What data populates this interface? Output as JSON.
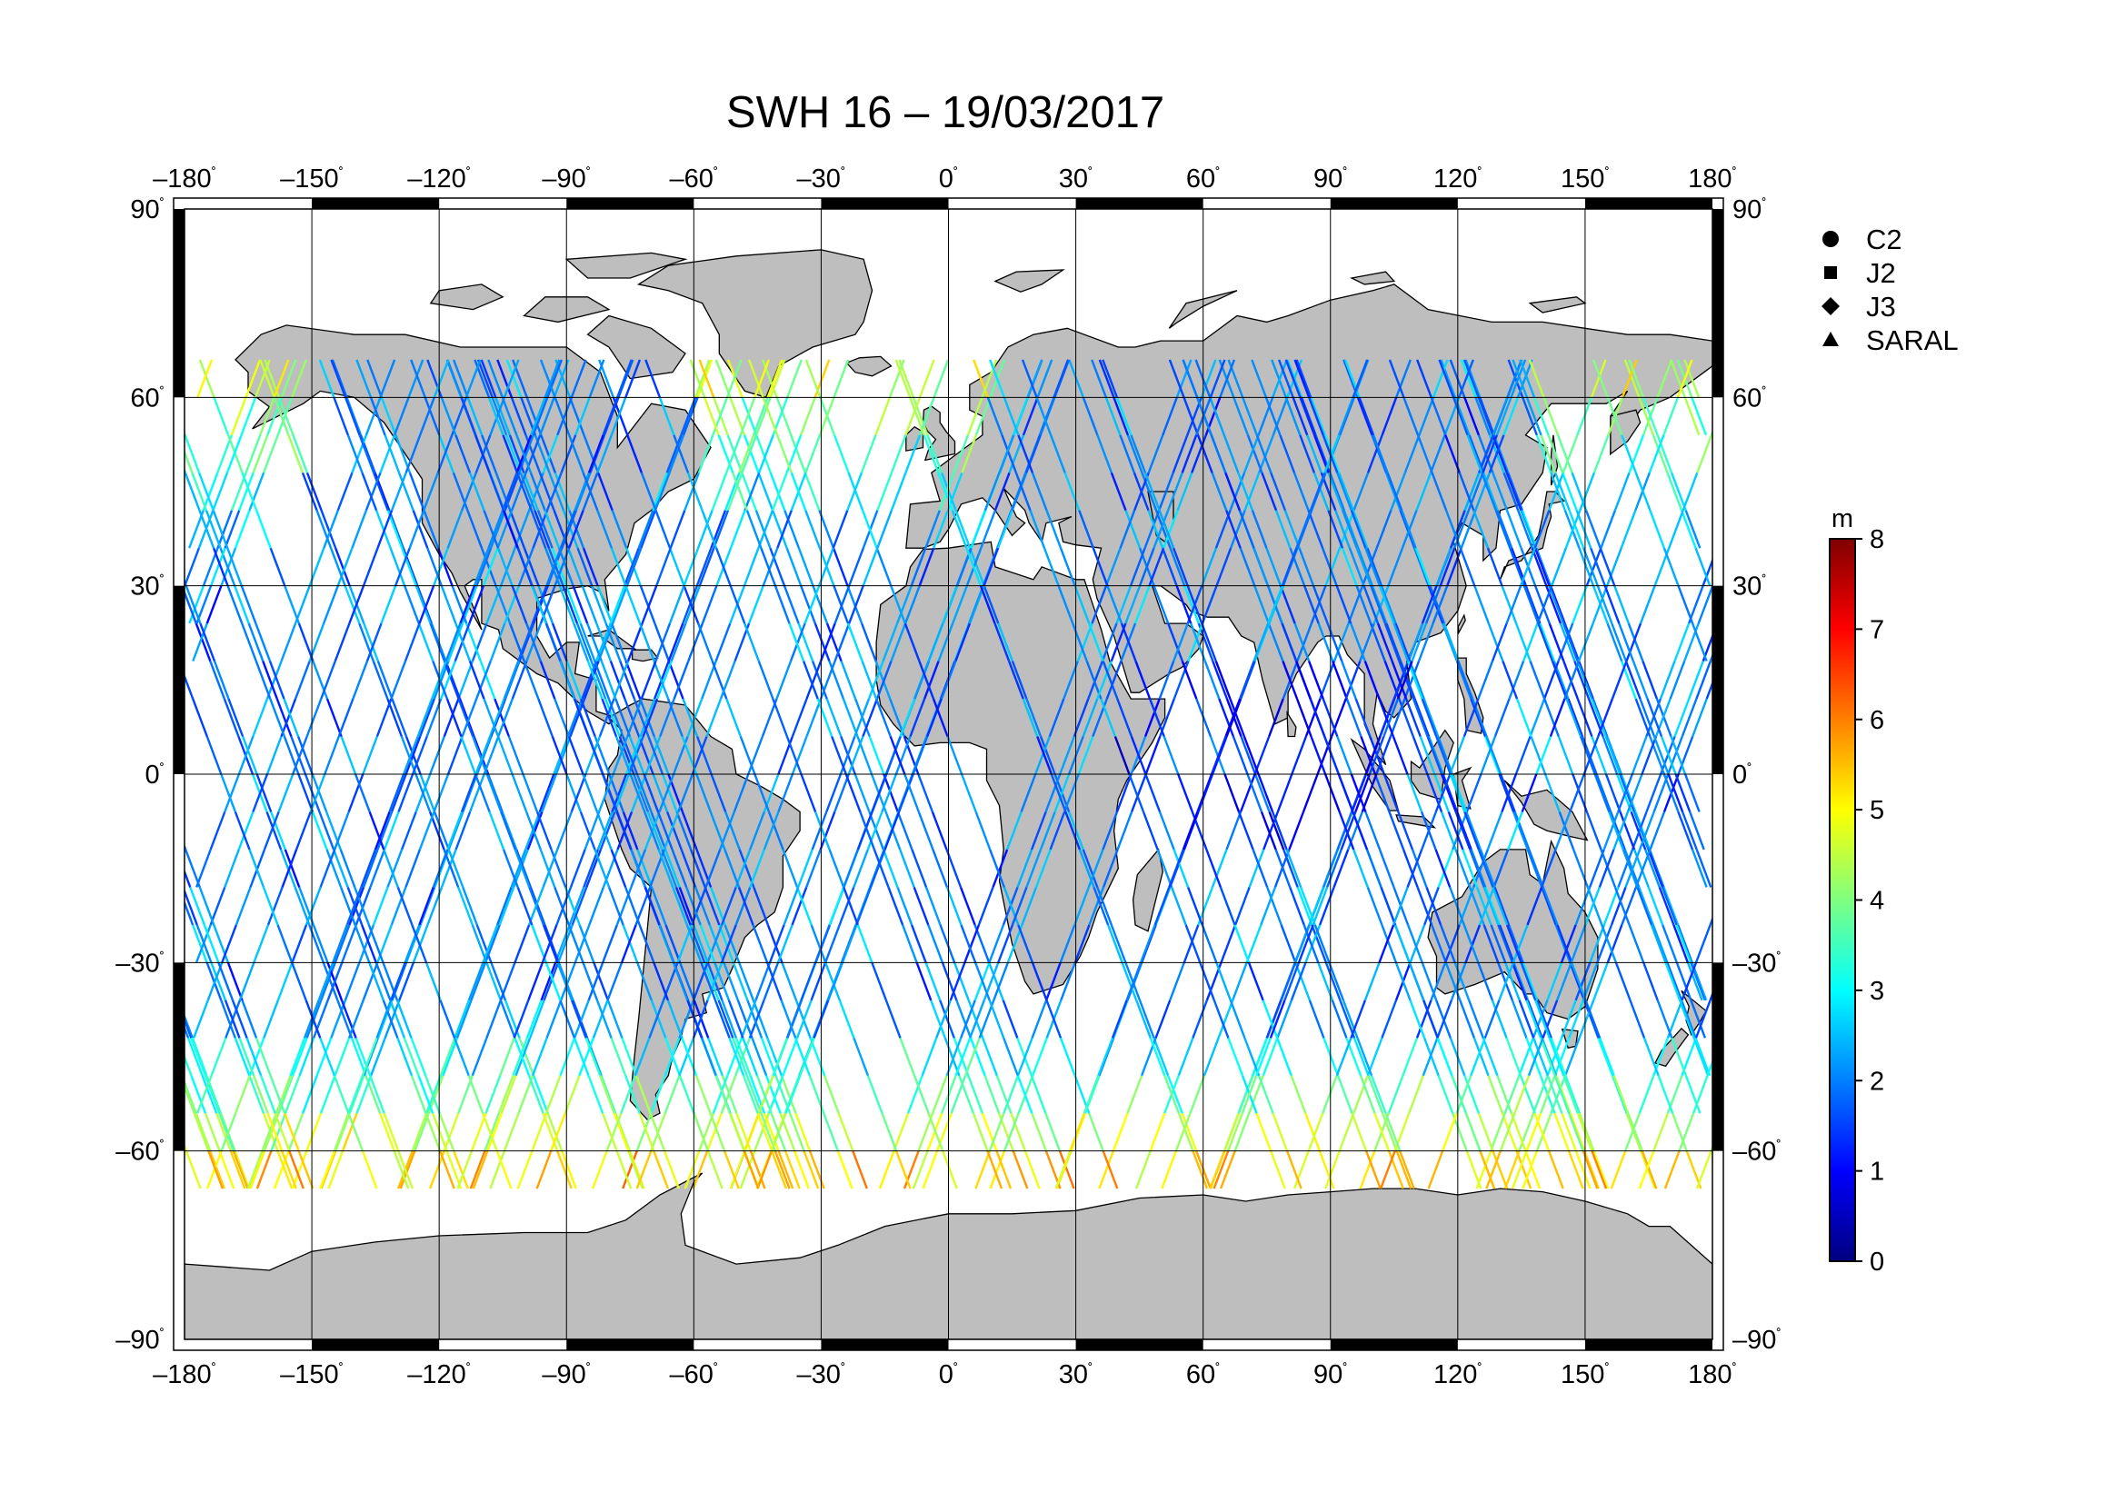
{
  "map": {
    "title": "SWH 16 – 19/03/2017",
    "lon_labels": [
      "–180",
      "–150",
      "–120",
      "–90",
      "–60",
      "–30",
      "0",
      "30",
      "60",
      "90",
      "120",
      "150",
      "180"
    ],
    "lat_labels": [
      "90",
      "60",
      "30",
      "0",
      "–30",
      "–60",
      "–90"
    ],
    "lon_values": [
      -180,
      -150,
      -120,
      -90,
      -60,
      -30,
      0,
      30,
      60,
      90,
      120,
      150,
      180
    ],
    "lat_values": [
      90,
      60,
      30,
      0,
      -30,
      -60,
      -90
    ],
    "degree_symbol": "˚",
    "grid": true,
    "land_color": "#bebebe",
    "ocean_color": "#ffffff"
  },
  "legend": {
    "items": [
      {
        "label": "C2",
        "symbol": "circle"
      },
      {
        "label": "J2",
        "symbol": "square"
      },
      {
        "label": "J3",
        "symbol": "diamond"
      },
      {
        "label": "SARAL",
        "symbol": "triangle"
      }
    ]
  },
  "colorbar": {
    "unit": "m",
    "min": 0,
    "max": 8,
    "ticks": [
      "0",
      "1",
      "2",
      "3",
      "4",
      "5",
      "6",
      "7",
      "8"
    ],
    "colormap": [
      "#00007f",
      "#0000ff",
      "#007fff",
      "#00ffff",
      "#7fff7f",
      "#ffff00",
      "#ff7f00",
      "#ff0000",
      "#7f0000"
    ]
  }
}
